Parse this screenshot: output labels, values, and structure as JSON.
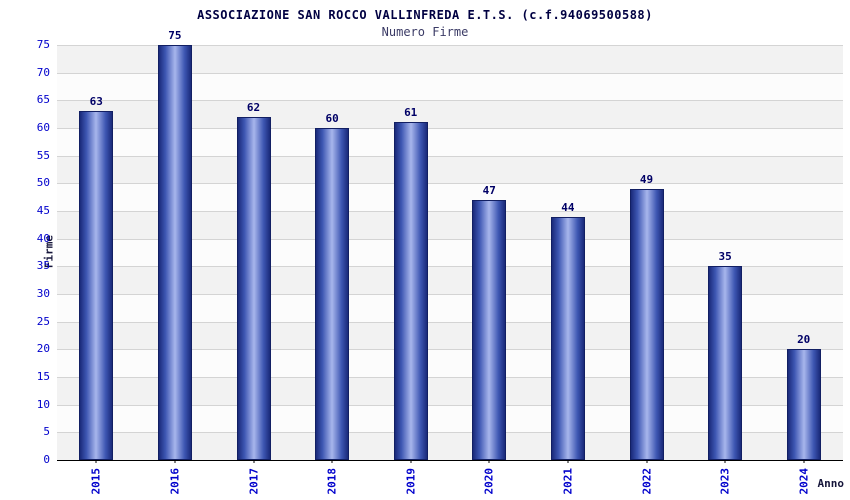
{
  "header": {
    "title": "ASSOCIAZIONE SAN ROCCO VALLINFREDA E.T.S. (c.f.94069500588)",
    "subtitle": "Numero Firme"
  },
  "chart_data": {
    "type": "bar",
    "title": "ASSOCIAZIONE SAN ROCCO VALLINFREDA E.T.S. (c.f.94069500588)",
    "subtitle": "Numero Firme",
    "categories": [
      "2015",
      "2016",
      "2017",
      "2018",
      "2019",
      "2020",
      "2021",
      "2022",
      "2023",
      "2024"
    ],
    "values": [
      63,
      75,
      62,
      60,
      61,
      47,
      44,
      49,
      35,
      20
    ],
    "xlabel": "Anno",
    "ylabel": "Firme",
    "ylim": [
      0,
      75
    ],
    "ytick_step": 5,
    "grid": true,
    "legend": "none",
    "colors": {
      "bar_edge": "#1a2a7a",
      "bar_mid": "#3d56b2",
      "bar_center": "#a8b6ec",
      "tick_label": "#0000cc",
      "value_label": "#000066",
      "title": "#000042",
      "grid_line": "#d4d4d4",
      "band_a": "#f2f2f2",
      "band_b": "#fcfcfc"
    }
  }
}
